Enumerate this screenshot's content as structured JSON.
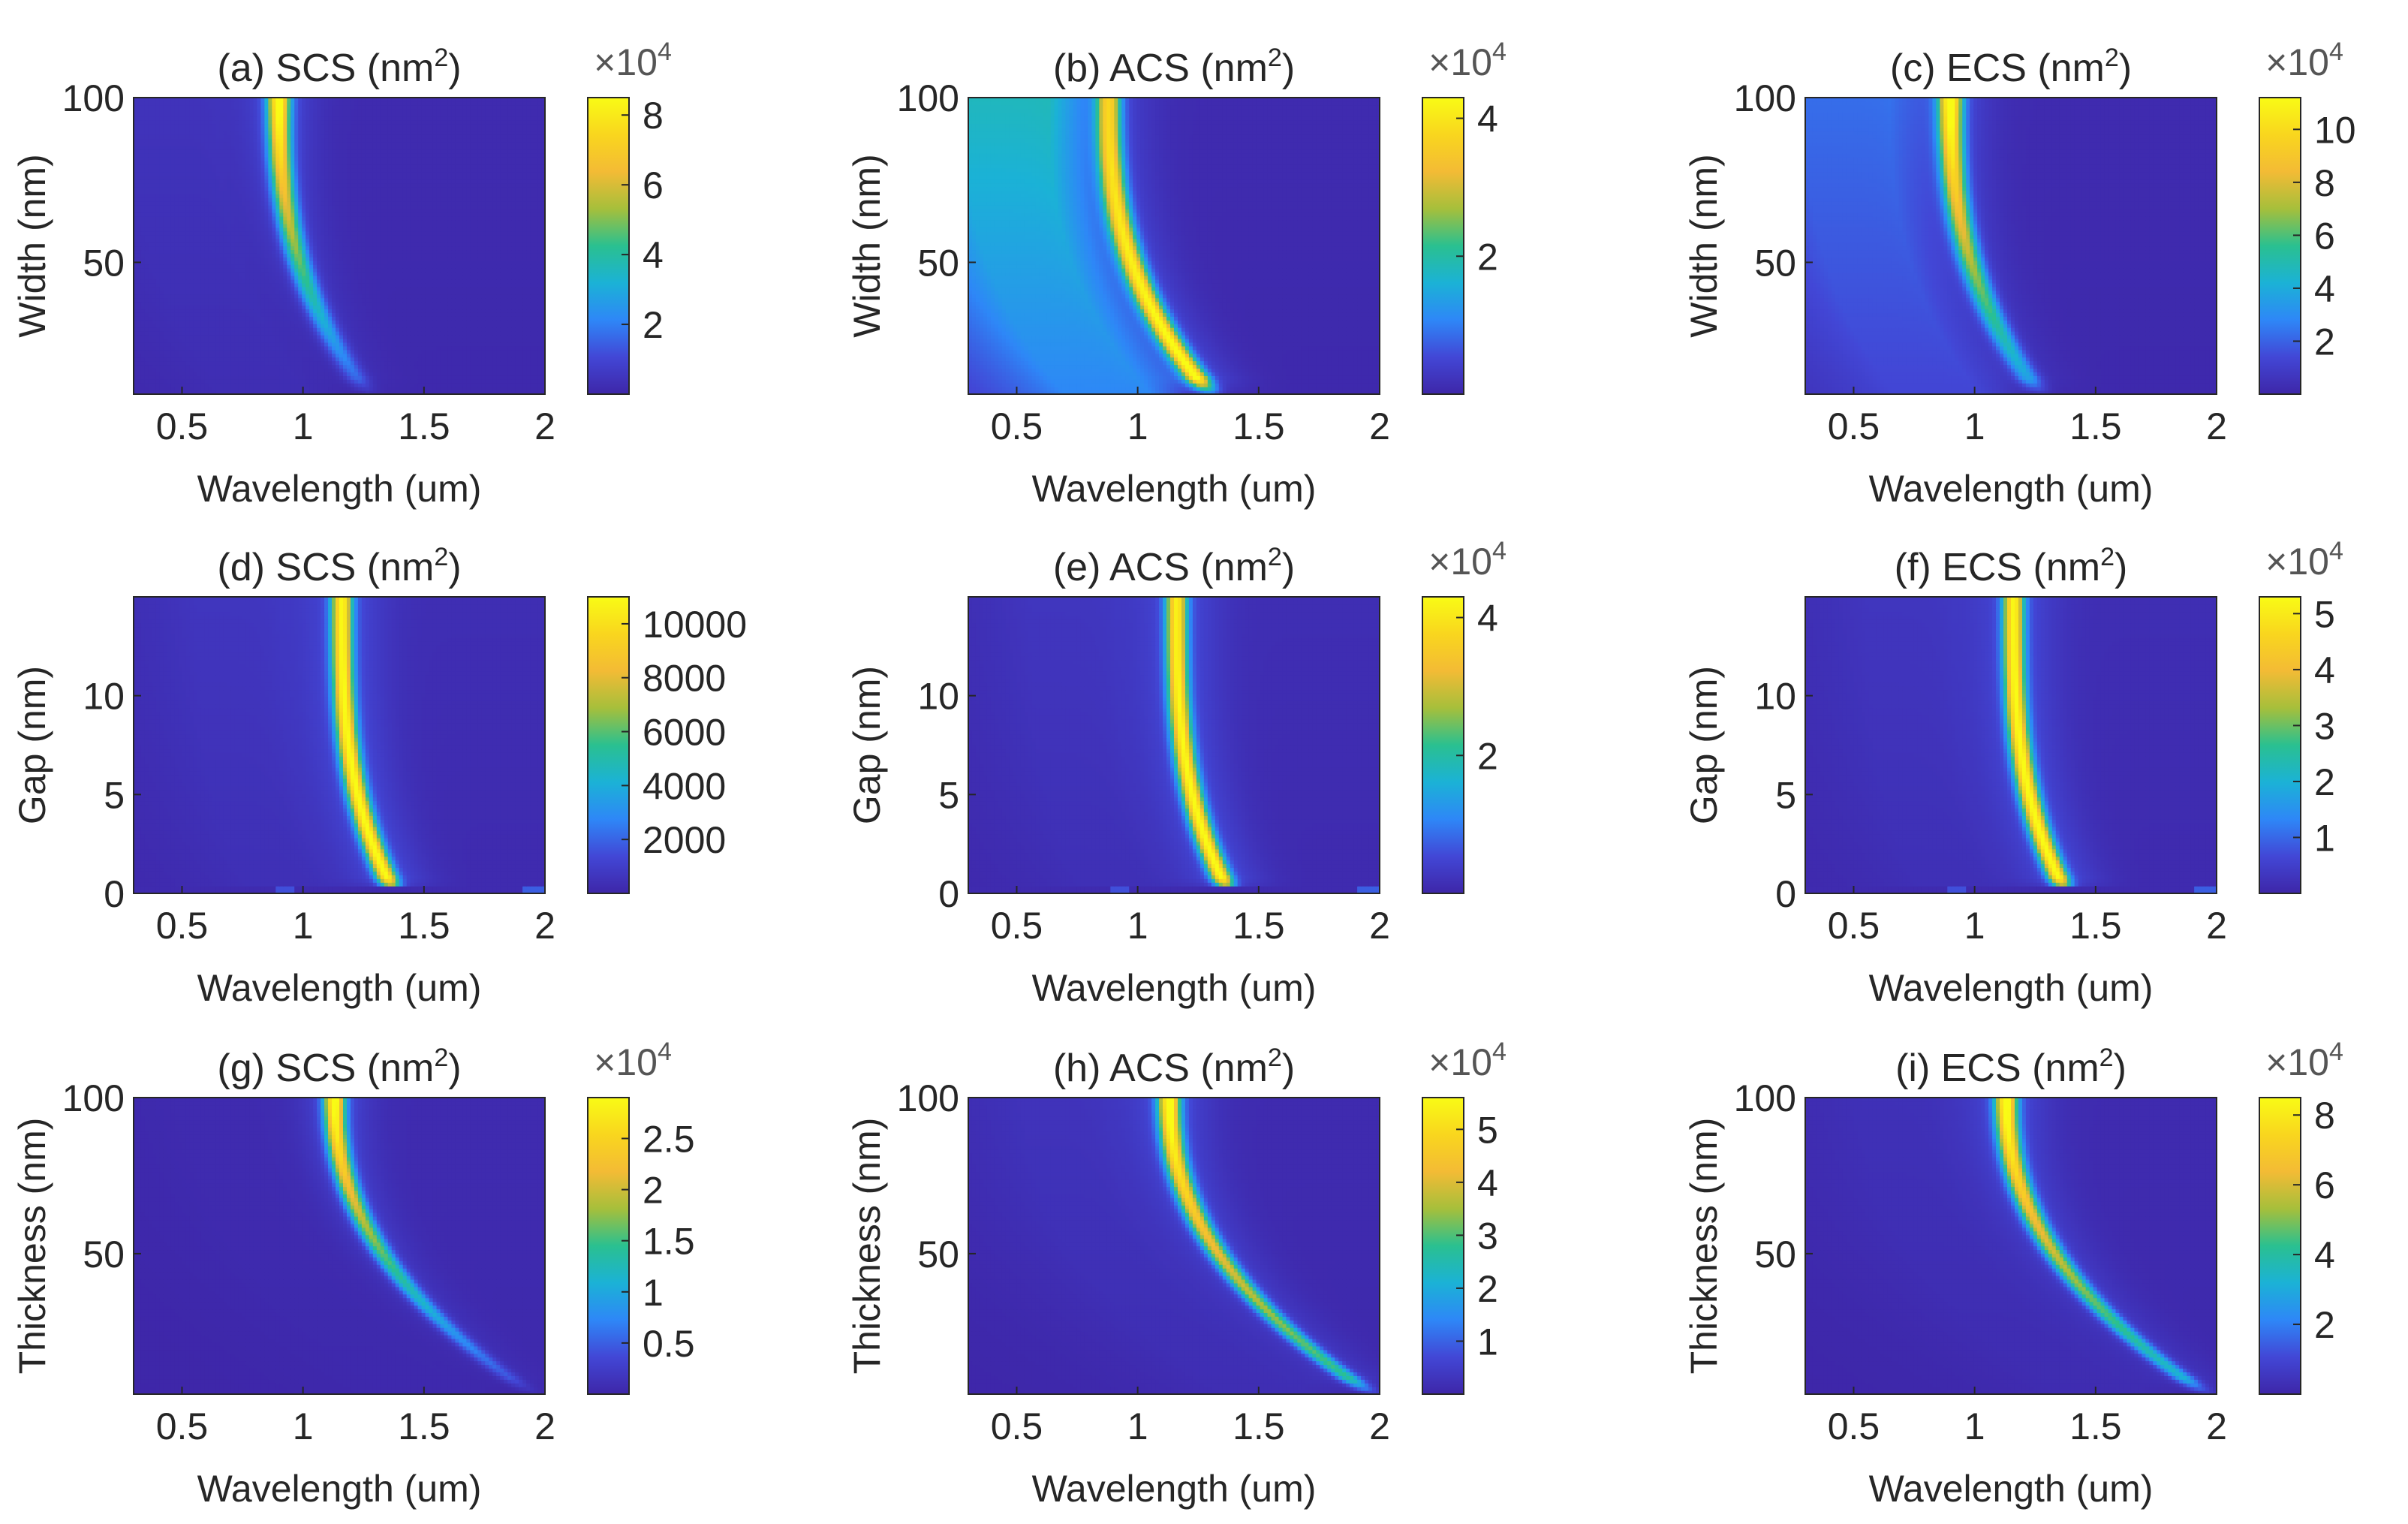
{
  "chart_data": [
    {
      "id": "a",
      "type": "heatmap",
      "title": "(a) SCS (nm",
      "title_sup": "2",
      "title_close": ")",
      "xlabel": "Wavelength (um)",
      "ylabel": "Width (nm)",
      "xlim": [
        0.3,
        2.0
      ],
      "ylim": [
        10,
        100
      ],
      "xticks": [
        0.5,
        1,
        1.5,
        2
      ],
      "xtick_labels": [
        "0.5",
        "1",
        "1.5",
        "2"
      ],
      "yticks": [
        50,
        100
      ],
      "ytick_labels": [
        "50",
        "100"
      ],
      "colorbar": {
        "min": 0,
        "max": 85000,
        "ticks": [
          20000,
          40000,
          60000,
          80000
        ],
        "tick_labels": [
          "2",
          "4",
          "6",
          "8"
        ],
        "multiplier": "×10",
        "exponent": "4"
      },
      "ridge": {
        "y_top": 100,
        "x_top": 0.9,
        "x_bottom": 1.27,
        "curve_exp": 2.5,
        "peak_top": 0.96,
        "peak_bottom": 0.12,
        "width": 0.032,
        "halo": 0.1,
        "bg_left": 0.05,
        "bg_right": 0.02,
        "notch": false
      }
    },
    {
      "id": "b",
      "type": "heatmap",
      "title": "(b) ACS (nm",
      "title_sup": "2",
      "title_close": ")",
      "xlabel": "Wavelength (um)",
      "ylabel": "Width (nm)",
      "xlim": [
        0.3,
        2.0
      ],
      "ylim": [
        10,
        100
      ],
      "xticks": [
        0.5,
        1,
        1.5,
        2
      ],
      "xtick_labels": [
        "0.5",
        "1",
        "1.5",
        "2"
      ],
      "yticks": [
        50,
        100
      ],
      "ytick_labels": [
        "50",
        "100"
      ],
      "colorbar": {
        "min": 0,
        "max": 43000,
        "ticks": [
          20000,
          40000
        ],
        "tick_labels": [
          "2",
          "4"
        ],
        "multiplier": "×10",
        "exponent": "4"
      },
      "ridge": {
        "y_top": 100,
        "x_top": 0.88,
        "x_bottom": 1.3,
        "curve_exp": 2.5,
        "peak_top": 0.78,
        "peak_bottom": 0.92,
        "width": 0.035,
        "halo": 0.12,
        "bg_left": 0.42,
        "bg_right": 0.02,
        "notch": false
      }
    },
    {
      "id": "c",
      "type": "heatmap",
      "title": "(c) ECS (nm",
      "title_sup": "2",
      "title_close": ")",
      "xlabel": "Wavelength (um)",
      "ylabel": "Width (nm)",
      "xlim": [
        0.3,
        2.0
      ],
      "ylim": [
        10,
        100
      ],
      "xticks": [
        0.5,
        1,
        1.5,
        2
      ],
      "xtick_labels": [
        "0.5",
        "1",
        "1.5",
        "2"
      ],
      "yticks": [
        50,
        100
      ],
      "ytick_labels": [
        "50",
        "100"
      ],
      "colorbar": {
        "min": 0,
        "max": 112000,
        "ticks": [
          20000,
          40000,
          60000,
          80000,
          100000
        ],
        "tick_labels": [
          "2",
          "4",
          "6",
          "8",
          "10"
        ],
        "multiplier": "×10",
        "exponent": "4"
      },
      "ridge": {
        "y_top": 100,
        "x_top": 0.9,
        "x_bottom": 1.27,
        "curve_exp": 2.5,
        "peak_top": 0.97,
        "peak_bottom": 0.25,
        "width": 0.034,
        "halo": 0.11,
        "bg_left": 0.2,
        "bg_right": 0.02,
        "notch": false
      }
    },
    {
      "id": "d",
      "type": "heatmap",
      "title": "(d) SCS (nm",
      "title_sup": "2",
      "title_close": ")",
      "xlabel": "Wavelength (um)",
      "ylabel": "Gap (nm)",
      "xlim": [
        0.3,
        2.0
      ],
      "ylim": [
        0,
        15
      ],
      "xticks": [
        0.5,
        1,
        1.5,
        2
      ],
      "xtick_labels": [
        "0.5",
        "1",
        "1.5",
        "2"
      ],
      "yticks": [
        0,
        5,
        10
      ],
      "ytick_labels": [
        "0",
        "5",
        "10"
      ],
      "colorbar": {
        "min": 0,
        "max": 11000,
        "ticks": [
          2000,
          4000,
          6000,
          8000,
          10000
        ],
        "tick_labels": [
          "2000",
          "4000",
          "6000",
          "8000",
          "10000"
        ],
        "multiplier": "",
        "exponent": ""
      },
      "ridge": {
        "y_top": 15,
        "x_top": 1.16,
        "x_bottom": 1.38,
        "curve_exp": 3,
        "peak_top": 0.88,
        "peak_bottom": 0.9,
        "width": 0.03,
        "halo": 0.12,
        "bg_left": 0.06,
        "bg_right": 0.03,
        "notch": true
      }
    },
    {
      "id": "e",
      "type": "heatmap",
      "title": "(e) ACS (nm",
      "title_sup": "2",
      "title_close": ")",
      "xlabel": "Wavelength (um)",
      "ylabel": "Gap (nm)",
      "xlim": [
        0.3,
        2.0
      ],
      "ylim": [
        0,
        15
      ],
      "xticks": [
        0.5,
        1,
        1.5,
        2
      ],
      "xtick_labels": [
        "0.5",
        "1",
        "1.5",
        "2"
      ],
      "yticks": [
        0,
        5,
        10
      ],
      "ytick_labels": [
        "0",
        "5",
        "10"
      ],
      "colorbar": {
        "min": 0,
        "max": 43000,
        "ticks": [
          20000,
          40000
        ],
        "tick_labels": [
          "2",
          "4"
        ],
        "multiplier": "×10",
        "exponent": "4"
      },
      "ridge": {
        "y_top": 15,
        "x_top": 1.16,
        "x_bottom": 1.38,
        "curve_exp": 3,
        "peak_top": 0.86,
        "peak_bottom": 0.9,
        "width": 0.03,
        "halo": 0.12,
        "bg_left": 0.06,
        "bg_right": 0.03,
        "notch": true
      }
    },
    {
      "id": "f",
      "type": "heatmap",
      "title": "(f) ECS (nm",
      "title_sup": "2",
      "title_close": ")",
      "xlabel": "Wavelength (um)",
      "ylabel": "Gap (nm)",
      "xlim": [
        0.3,
        2.0
      ],
      "ylim": [
        0,
        15
      ],
      "xticks": [
        0.5,
        1,
        1.5,
        2
      ],
      "xtick_labels": [
        "0.5",
        "1",
        "1.5",
        "2"
      ],
      "yticks": [
        0,
        5,
        10
      ],
      "ytick_labels": [
        "0",
        "5",
        "10"
      ],
      "colorbar": {
        "min": 0,
        "max": 53000,
        "ticks": [
          10000,
          20000,
          30000,
          40000,
          50000
        ],
        "tick_labels": [
          "1",
          "2",
          "3",
          "4",
          "5"
        ],
        "multiplier": "×10",
        "exponent": "4"
      },
      "ridge": {
        "y_top": 15,
        "x_top": 1.16,
        "x_bottom": 1.38,
        "curve_exp": 3,
        "peak_top": 0.88,
        "peak_bottom": 0.9,
        "width": 0.03,
        "halo": 0.12,
        "bg_left": 0.06,
        "bg_right": 0.03,
        "notch": true
      }
    },
    {
      "id": "g",
      "type": "heatmap",
      "title": "(g) SCS (nm",
      "title_sup": "2",
      "title_close": ")",
      "xlabel": "Wavelength (um)",
      "ylabel": "Thickness (nm)",
      "xlim": [
        0.3,
        2.0
      ],
      "ylim": [
        5,
        100
      ],
      "xticks": [
        0.5,
        1,
        1.5,
        2
      ],
      "xtick_labels": [
        "0.5",
        "1",
        "1.5",
        "2"
      ],
      "yticks": [
        50,
        100
      ],
      "ytick_labels": [
        "50",
        "100"
      ],
      "colorbar": {
        "min": 0,
        "max": 29000,
        "ticks": [
          5000,
          10000,
          15000,
          20000,
          25000
        ],
        "tick_labels": [
          "0.5",
          "1",
          "1.5",
          "2",
          "2.5"
        ],
        "multiplier": "×10",
        "exponent": "4"
      },
      "ridge": {
        "y_top": 100,
        "x_top": 1.13,
        "x_bottom": 1.95,
        "curve_exp": 2.2,
        "peak_top": 0.95,
        "peak_bottom": 0.08,
        "width": 0.03,
        "halo": 0.1,
        "bg_left": 0.02,
        "bg_right": 0.02,
        "notch": false
      }
    },
    {
      "id": "h",
      "type": "heatmap",
      "title": "(h) ACS (nm",
      "title_sup": "2",
      "title_close": ")",
      "xlabel": "Wavelength (um)",
      "ylabel": "Thickness (nm)",
      "xlim": [
        0.3,
        2.0
      ],
      "ylim": [
        5,
        100
      ],
      "xticks": [
        0.5,
        1,
        1.5,
        2
      ],
      "xtick_labels": [
        "0.5",
        "1",
        "1.5",
        "2"
      ],
      "yticks": [
        50,
        100
      ],
      "ytick_labels": [
        "50",
        "100"
      ],
      "colorbar": {
        "min": 0,
        "max": 56000,
        "ticks": [
          10000,
          20000,
          30000,
          40000,
          50000
        ],
        "tick_labels": [
          "1",
          "2",
          "3",
          "4",
          "5"
        ],
        "multiplier": "×10",
        "exponent": "4"
      },
      "ridge": {
        "y_top": 100,
        "x_top": 1.13,
        "x_bottom": 1.97,
        "curve_exp": 2.2,
        "peak_top": 0.95,
        "peak_bottom": 0.4,
        "width": 0.032,
        "halo": 0.12,
        "bg_left": 0.05,
        "bg_right": 0.02,
        "notch": false
      }
    },
    {
      "id": "i",
      "type": "heatmap",
      "title": "(i) ECS (nm",
      "title_sup": "2",
      "title_close": ")",
      "xlabel": "Wavelength (um)",
      "ylabel": "Thickness (nm)",
      "xlim": [
        0.3,
        2.0
      ],
      "ylim": [
        5,
        100
      ],
      "xticks": [
        0.5,
        1,
        1.5,
        2
      ],
      "xtick_labels": [
        "0.5",
        "1",
        "1.5",
        "2"
      ],
      "yticks": [
        50,
        100
      ],
      "ytick_labels": [
        "50",
        "100"
      ],
      "colorbar": {
        "min": 0,
        "max": 85000,
        "ticks": [
          20000,
          40000,
          60000,
          80000
        ],
        "tick_labels": [
          "2",
          "4",
          "6",
          "8"
        ],
        "multiplier": "×10",
        "exponent": "4"
      },
      "ridge": {
        "y_top": 100,
        "x_top": 1.13,
        "x_bottom": 1.96,
        "curve_exp": 2.2,
        "peak_top": 0.95,
        "peak_bottom": 0.3,
        "width": 0.032,
        "halo": 0.12,
        "bg_left": 0.04,
        "bg_right": 0.02,
        "notch": false
      }
    }
  ],
  "colormap": {
    "name": "parula",
    "stops": [
      "#3e26a8",
      "#4247d6",
      "#2e87f7",
      "#1bb2d6",
      "#2ac090",
      "#a6bf3b",
      "#f3bb35",
      "#f9d61e",
      "#f9fb15"
    ]
  },
  "frame_color": "#262626"
}
